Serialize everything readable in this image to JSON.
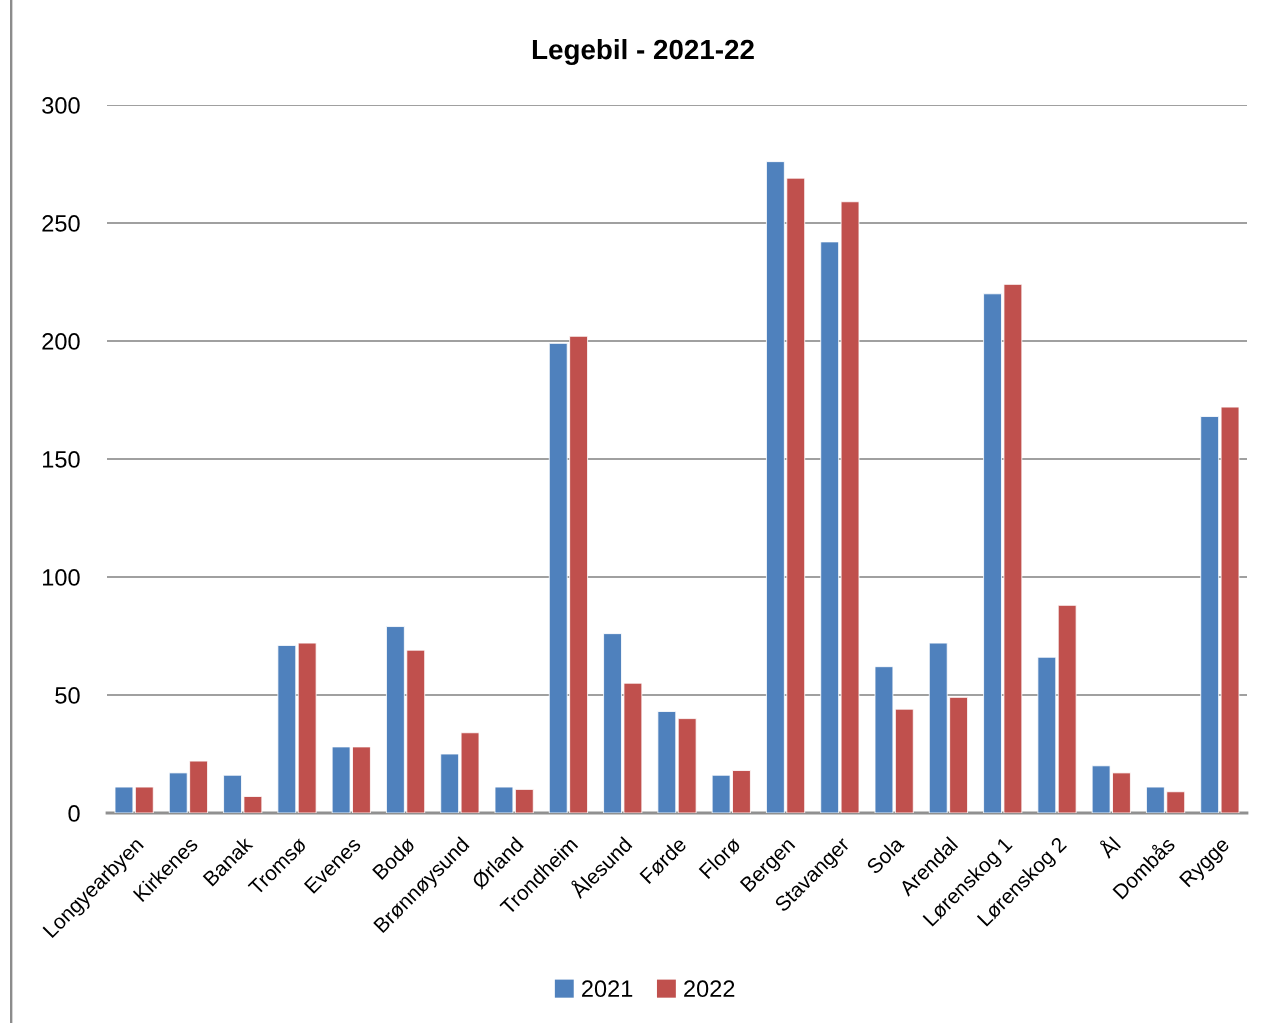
{
  "chart_data": {
    "type": "bar",
    "title": "Legebil - 2021-22",
    "categories": [
      "Longyearbyen",
      "Kirkenes",
      "Banak",
      "Tromsø",
      "Evenes",
      "Bodø",
      "Brønnøysund",
      "Ørland",
      "Trondheim",
      "Ålesund",
      "Førde",
      "Florø",
      "Bergen",
      "Stavanger",
      "Sola",
      "Arendal",
      "Lørenskog 1",
      "Lørenskog 2",
      "Ål",
      "Dombås",
      "Rygge"
    ],
    "series": [
      {
        "name": "2021",
        "color": "#4f81bd",
        "values": [
          11,
          17,
          16,
          71,
          28,
          79,
          25,
          11,
          199,
          76,
          43,
          16,
          276,
          242,
          62,
          72,
          220,
          66,
          20,
          11,
          168
        ]
      },
      {
        "name": "2022",
        "color": "#c0504d",
        "values": [
          11,
          22,
          7,
          72,
          28,
          69,
          34,
          10,
          202,
          55,
          40,
          18,
          269,
          259,
          44,
          49,
          224,
          88,
          17,
          9,
          172
        ]
      }
    ],
    "ylim": [
      0,
      300
    ],
    "yticks": [
      0,
      50,
      100,
      150,
      200,
      250,
      300
    ],
    "grid": "y",
    "legend": "bottom"
  }
}
